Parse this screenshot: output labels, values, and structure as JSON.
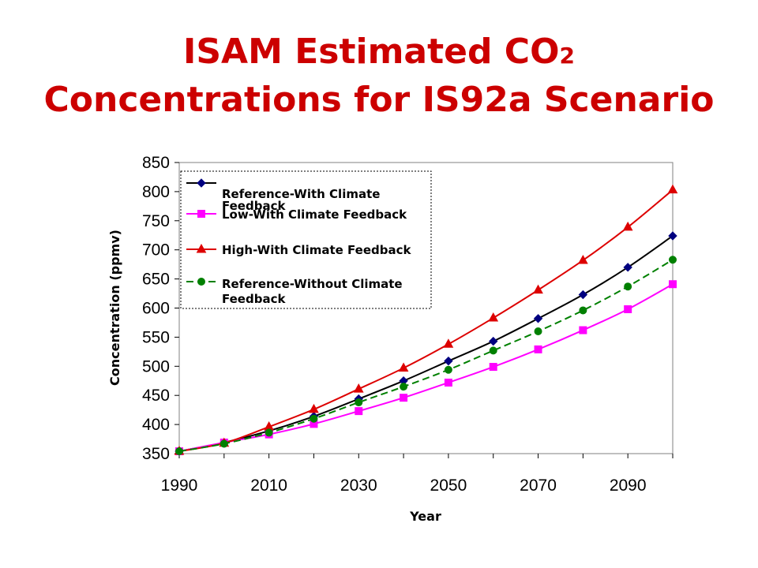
{
  "slide": {
    "title_prefix": "ISAM Estimated CO",
    "title_subscript": "2",
    "title_line2": "Concentrations for IS92a Scenario"
  },
  "chart_data": {
    "type": "line",
    "xlabel": "Year",
    "ylabel": "Concentration (ppmv)",
    "xlim": [
      1990,
      2100
    ],
    "ylim": [
      350,
      850
    ],
    "x_ticks": [
      1990,
      2010,
      2030,
      2050,
      2070,
      2090
    ],
    "y_ticks": [
      350,
      400,
      450,
      500,
      550,
      600,
      650,
      700,
      750,
      800,
      850
    ],
    "x": [
      1990,
      2000,
      2010,
      2020,
      2030,
      2040,
      2050,
      2060,
      2070,
      2080,
      2090,
      2100
    ],
    "legend_position": "top-left",
    "series": [
      {
        "name_lines": [
          "Reference-With Climate",
          "Feedback"
        ],
        "color": "#000000",
        "marker_color": "#000080",
        "marker": "diamond",
        "dash": "solid",
        "values": [
          354,
          369,
          389,
          414,
          444,
          475,
          509,
          543,
          582,
          623,
          670,
          724
        ]
      },
      {
        "name_lines": [
          "Low-With Climate Feedback"
        ],
        "color": "#ff00ff",
        "marker_color": "#ff00ff",
        "marker": "square",
        "dash": "solid",
        "values": [
          354,
          369,
          383,
          401,
          423,
          446,
          472,
          499,
          529,
          562,
          598,
          641
        ]
      },
      {
        "name_lines": [
          "High-With Climate Feedback"
        ],
        "color": "#dd0000",
        "marker_color": "#dd0000",
        "marker": "triangle",
        "dash": "solid",
        "values": [
          354,
          368,
          396,
          426,
          461,
          497,
          538,
          583,
          631,
          682,
          739,
          803
        ]
      },
      {
        "name_lines": [
          "Reference-Without Climate",
          "Feedback"
        ],
        "color": "#008000",
        "marker_color": "#008000",
        "marker": "circle",
        "dash": "dashed",
        "values": [
          354,
          367,
          386,
          410,
          438,
          465,
          494,
          527,
          560,
          596,
          637,
          683
        ]
      }
    ]
  }
}
